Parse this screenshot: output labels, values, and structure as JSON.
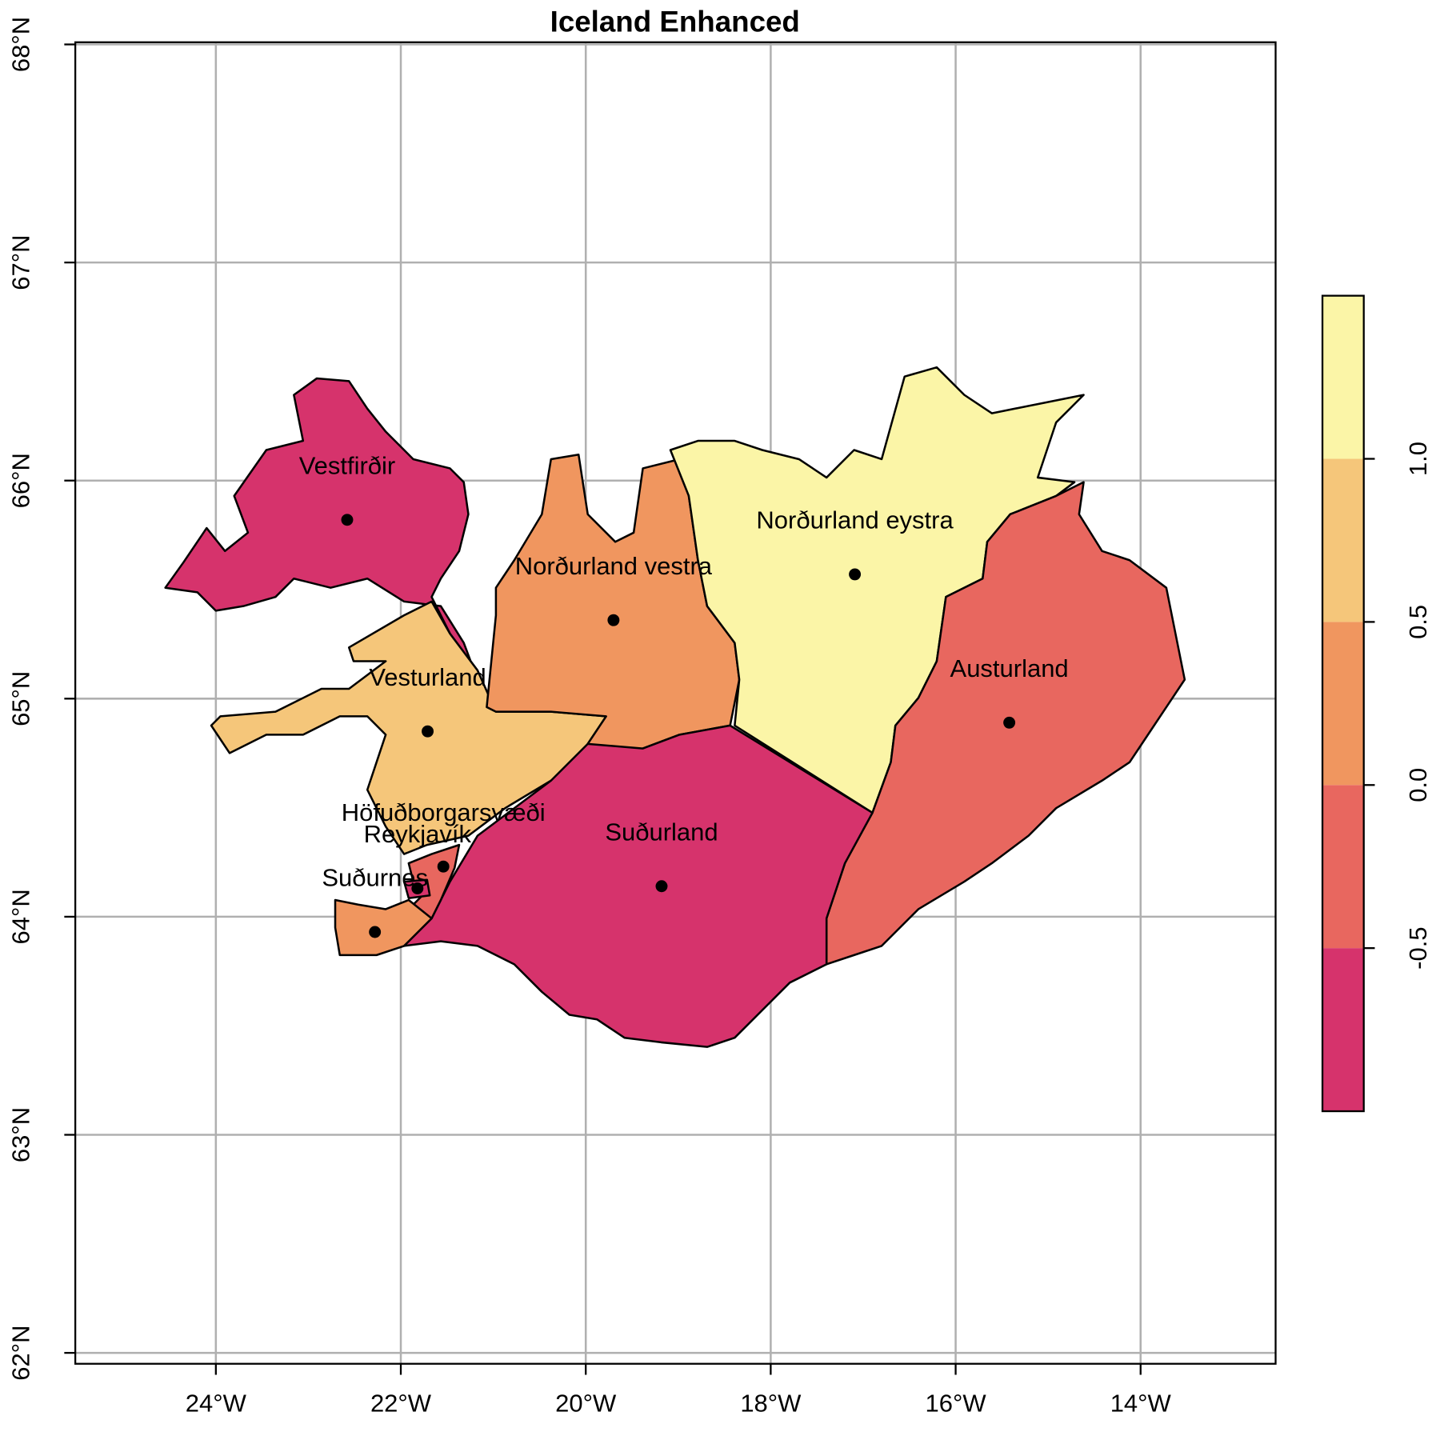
{
  "chart_data": {
    "type": "choropleth",
    "title": "Iceland Enhanced",
    "xlim": [
      -25.52,
      -12.54
    ],
    "ylim": [
      61.95,
      68.01
    ],
    "xticks": [
      {
        "value": -24,
        "label": "24°W"
      },
      {
        "value": -22,
        "label": "22°W"
      },
      {
        "value": -20,
        "label": "20°W"
      },
      {
        "value": -18,
        "label": "18°W"
      },
      {
        "value": -16,
        "label": "16°W"
      },
      {
        "value": -14,
        "label": "14°W"
      }
    ],
    "yticks": [
      {
        "value": 62,
        "label": "62°N"
      },
      {
        "value": 63,
        "label": "63°N"
      },
      {
        "value": 64,
        "label": "64°N"
      },
      {
        "value": 65,
        "label": "65°N"
      },
      {
        "value": 66,
        "label": "66°N"
      },
      {
        "value": 67,
        "label": "67°N"
      },
      {
        "value": 68,
        "label": "68°N"
      }
    ],
    "grid": true,
    "regions": [
      {
        "name": "Vestfirðir",
        "color": "#d6336c",
        "lon": -22.58,
        "lat": 65.82
      },
      {
        "name": "Norðurland vestra",
        "color": "#f0965f",
        "lon": -19.7,
        "lat": 65.36
      },
      {
        "name": "Norðurland eystra",
        "color": "#fbf5a7",
        "lon": -17.09,
        "lat": 65.57
      },
      {
        "name": "Vesturland",
        "color": "#f5c67a",
        "lon": -21.71,
        "lat": 64.85
      },
      {
        "name": "Austurland",
        "color": "#e8675f",
        "lon": -15.42,
        "lat": 64.89
      },
      {
        "name": "Suðurland",
        "color": "#d6336c",
        "lon": -19.18,
        "lat": 64.14
      },
      {
        "name": "Höfuðborgarsvæði",
        "color": "#e8675f",
        "lon": -21.54,
        "lat": 64.23
      },
      {
        "name": "Reykjavík",
        "color": "#d6336c",
        "lon": -21.82,
        "lat": 64.13
      },
      {
        "name": "Suðurnes",
        "color": "#f0965f",
        "lon": -22.28,
        "lat": 63.93
      }
    ],
    "colorbar": {
      "breaks": [
        -1,
        -0.5,
        0,
        0.5,
        1,
        1.5
      ],
      "colors": [
        "#d6336c",
        "#e8675f",
        "#f0965f",
        "#f5c67a",
        "#fbf5a7"
      ],
      "ticks": [
        -0.5,
        {
          "value": 0,
          "label": "0.0"
        },
        0.5,
        {
          "value": 1,
          "label": "1.0"
        }
      ]
    }
  }
}
